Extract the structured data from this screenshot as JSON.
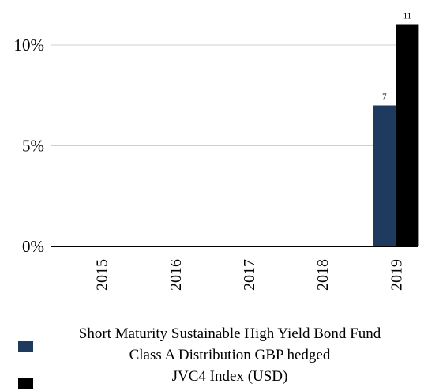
{
  "chart_data": {
    "type": "bar",
    "categories": [
      "2015",
      "2016",
      "2017",
      "2018",
      "2019"
    ],
    "series": [
      {
        "name": "Short Maturity Sustainable High Yield Bond Fund Class A Distribution GBP hedged",
        "values": [
          0,
          0,
          0,
          0,
          7
        ],
        "data_labels": [
          null,
          null,
          null,
          null,
          "7"
        ],
        "color": "#1e3a5f"
      },
      {
        "name": "JVC4 Index (USD)",
        "values": [
          0,
          0,
          0,
          0,
          11
        ],
        "data_labels": [
          null,
          null,
          null,
          null,
          "11"
        ],
        "color": "#000000"
      }
    ],
    "y_ticks": [
      0,
      5,
      10
    ],
    "y_tick_labels": [
      "0%",
      "5%",
      "10%"
    ],
    "ylim": [
      0,
      12
    ],
    "grid": true,
    "legend_position": "bottom"
  },
  "legend": {
    "line1": "Short Maturity Sustainable High Yield Bond Fund",
    "line2": "Class A Distribution GBP hedged",
    "line3": "JVC4 Index (USD)"
  }
}
